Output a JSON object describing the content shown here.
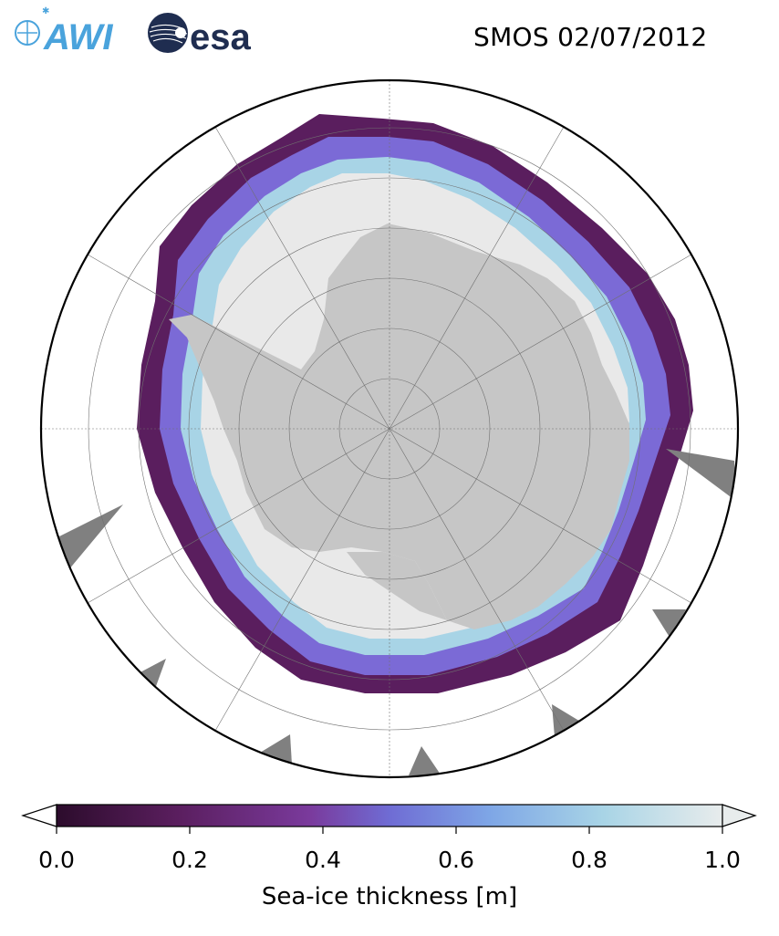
{
  "header": {
    "title": "SMOS 02/07/2012",
    "logos": [
      {
        "name": "AWI",
        "text": "AWI",
        "color": "#4aa3dc"
      },
      {
        "name": "esa",
        "text": "esa",
        "color": "#1f2d50"
      }
    ]
  },
  "map": {
    "projection": "south-polar-stereographic",
    "colors": {
      "land": "#c6c6c6",
      "ice_shelf": "#e9e9e9",
      "ocean": "#ffffff",
      "no_data": "#808080",
      "gridline": "#707070"
    }
  },
  "colorbar": {
    "label": "Sea-ice thickness [m]",
    "ticks": [
      "0.0",
      "0.2",
      "0.4",
      "0.6",
      "0.8",
      "1.0"
    ],
    "min": 0.0,
    "max": 1.0,
    "extend": "both",
    "colors": [
      "#2c0c2c",
      "#5a1e5e",
      "#7a3a9c",
      "#6f6cd4",
      "#7ea6e6",
      "#a8d4e6",
      "#e8ecec"
    ]
  }
}
